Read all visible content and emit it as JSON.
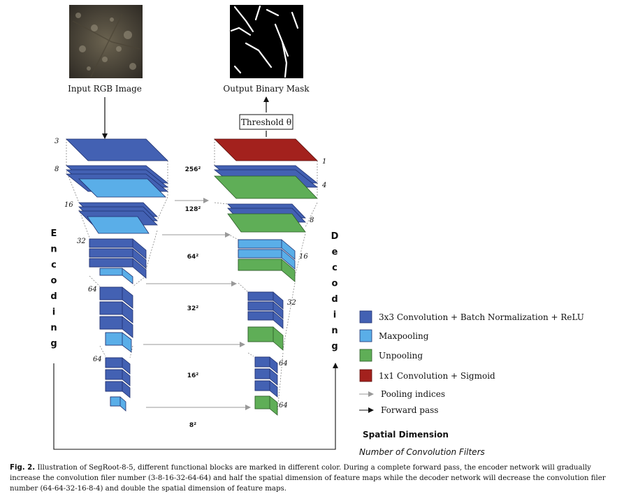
{
  "input_label": "Input RGB Image",
  "output_label": "Output Binary Mask",
  "threshold_label": "Threshold θ",
  "encoder_side_label": "Encoding",
  "decoder_side_label": "Decoding",
  "encoder_filters": [
    "3",
    "8",
    "16",
    "32",
    "64",
    "64"
  ],
  "decoder_filters": [
    "1",
    "4",
    "8",
    "16",
    "32",
    "64",
    "64"
  ],
  "spatial_dims": [
    "256²",
    "128²",
    "64²",
    "32²",
    "16²",
    "8²"
  ],
  "legend": {
    "conv_bn_relu": "3x3 Convolution + Batch Normalization + ReLU",
    "maxpooling": "Maxpooling",
    "unpooling": "Unpooling",
    "conv_sigmoid": "1x1 Convolution + Sigmoid",
    "pooling_indices": "Pooling indices",
    "forward_pass": "Forward pass",
    "spatial_dimension": "Spatial Dimension",
    "num_filters": "Number of Convolution Filters"
  },
  "colors": {
    "conv": "#4361b3",
    "maxpool": "#5aaee8",
    "unpool": "#5fae57",
    "sigmoid": "#a3211d",
    "pool_arrow": "#999999"
  },
  "caption": {
    "fig_label": "Fig. 2.",
    "text": "Illustration of SegRoot-8-5, different functional blocks are marked in different color. During a complete forward pass, the encoder network will gradually increase the convolution filer number (3-8-16-32-64-64) and half the spatial dimension of feature maps while the decoder network will decrease the convolution filer number (64-64-32-16-8-4) and double the spatial dimension of feature maps."
  }
}
